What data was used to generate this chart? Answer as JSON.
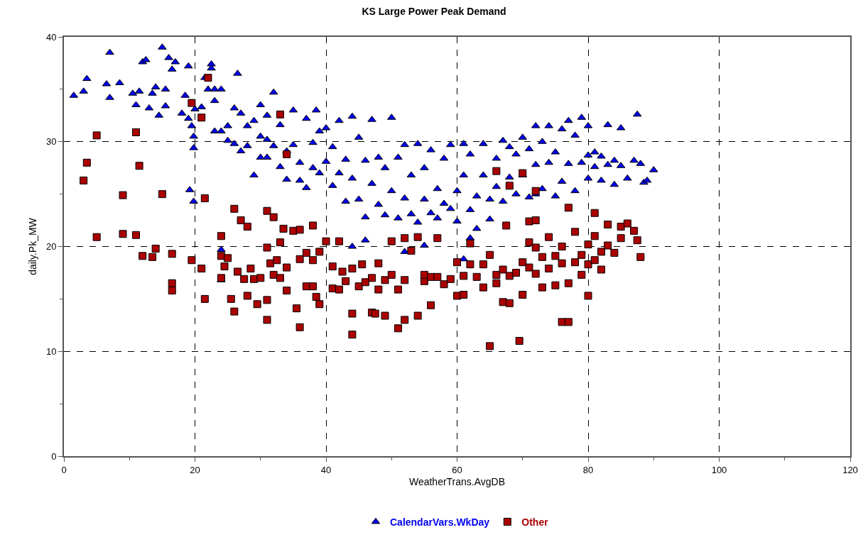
{
  "chart_data": {
    "type": "scatter",
    "title": "KS Large Power Peak Demand",
    "xlabel": "WeatherTrans.AvgDB",
    "ylabel": "daily.Pk_MW",
    "xlim": [
      0,
      120
    ],
    "xticks": [
      0,
      20,
      40,
      60,
      80,
      100,
      120
    ],
    "ylim": [
      0,
      40
    ],
    "yticks": [
      0,
      10,
      20,
      30,
      40
    ],
    "grid": true,
    "legend": "bottom",
    "series": [
      {
        "name": "CalendarVars.WkDay",
        "color": "#0000ee",
        "marker": "triangle",
        "x": [
          1.5,
          3,
          3.5,
          7,
          6.5,
          7,
          8.5,
          10.5,
          11.5,
          11,
          12,
          12.5,
          13,
          13.5,
          14,
          14.5,
          15,
          15.5,
          15.5,
          16,
          16.5,
          17,
          18,
          18.5,
          19,
          19,
          19.2,
          19.5,
          19.8,
          19.8,
          19.8,
          20,
          21,
          21.5,
          22,
          22.5,
          22.5,
          23,
          23,
          23,
          24,
          24,
          24,
          24,
          25,
          25,
          26,
          26,
          26.5,
          27,
          27,
          28,
          28,
          29,
          29,
          30,
          30,
          30,
          31,
          31,
          31,
          32,
          32,
          33,
          33,
          34,
          34,
          35,
          35,
          36,
          36,
          37,
          37,
          38,
          38,
          38.5,
          39,
          39,
          40,
          40,
          41,
          41,
          42,
          42,
          43,
          43,
          44,
          44,
          45,
          45,
          46,
          46,
          47,
          47,
          48,
          48,
          49,
          49,
          50,
          50,
          51,
          51,
          52,
          52,
          53,
          53,
          54,
          54,
          55,
          55,
          56,
          56,
          57,
          57,
          58,
          58,
          59,
          59,
          60,
          60,
          61,
          61,
          62,
          62,
          63,
          63,
          64,
          64,
          65,
          65,
          66,
          66,
          67,
          67,
          68,
          68,
          69,
          69,
          70,
          70,
          71,
          71,
          72,
          72,
          73,
          73,
          74,
          74,
          75,
          75,
          76,
          76,
          77,
          77,
          78,
          78,
          79,
          79,
          80,
          80,
          81,
          81,
          82,
          82,
          83,
          83,
          84,
          85,
          85,
          86,
          87,
          87.5,
          88,
          88.5,
          89,
          90,
          84,
          80,
          72,
          46,
          44,
          61,
          55,
          62,
          52
        ],
        "values": [
          34.4,
          34.8,
          36,
          38.5,
          35.5,
          34.2,
          35.6,
          34.6,
          34.8,
          33.5,
          37.6,
          37.8,
          33.2,
          34.6,
          35.2,
          32.5,
          39,
          33.4,
          35,
          38,
          36.9,
          37.6,
          32.7,
          34.4,
          37.2,
          32.2,
          25.4,
          31.5,
          24.3,
          30.5,
          29.4,
          33.1,
          33.3,
          36.1,
          35,
          37,
          37.4,
          31,
          33.9,
          35,
          35,
          31,
          19.7,
          16.8,
          31.5,
          30.1,
          33.2,
          29.8,
          36.5,
          32.7,
          29.1,
          31.5,
          29.6,
          32,
          26.8,
          33.5,
          30.5,
          28.5,
          32.5,
          30.2,
          28.5,
          34.7,
          29.6,
          27.6,
          31.6,
          26.4,
          29.1,
          33,
          29.7,
          28,
          26.3,
          32.2,
          25.6,
          29.9,
          27.5,
          33,
          31,
          27,
          31.3,
          28.1,
          25.8,
          29.5,
          32,
          27,
          24.3,
          28.3,
          32.4,
          26.5,
          30.4,
          24.5,
          28.2,
          22.8,
          32.1,
          26,
          24,
          28.5,
          23,
          27.5,
          32.3,
          25.3,
          22.7,
          28.5,
          29.7,
          24.6,
          23.1,
          26.8,
          29.8,
          22.3,
          24.5,
          27.5,
          29.2,
          23.2,
          25.5,
          22.7,
          28.4,
          24.1,
          29.7,
          23.6,
          25.3,
          22.4,
          29.8,
          26.8,
          28.8,
          23.5,
          24.8,
          21.7,
          29.8,
          26.8,
          24.5,
          22.6,
          28.4,
          25.7,
          30.1,
          24.3,
          29.5,
          26.6,
          25,
          28.8,
          30.4,
          26.8,
          29.3,
          24.7,
          31.5,
          27.8,
          25.5,
          30,
          31.5,
          28,
          24.8,
          29,
          31.2,
          26.2,
          32,
          27.9,
          30.6,
          25.3,
          32.3,
          28,
          31.5,
          26.5,
          29,
          27.6,
          28.6,
          26.3,
          31.6,
          27.8,
          28.2,
          31.3,
          27.7,
          26.5,
          28.2,
          32.6,
          27.9,
          26.1,
          26.3,
          27.3,
          25.9,
          28.7,
          25,
          20.6,
          20,
          18.8,
          20.1,
          20.8,
          19.5
        ]
      },
      {
        "name": "Other",
        "color": "#aa0000",
        "marker": "square",
        "x": [
          3,
          3.5,
          5,
          5,
          9,
          9,
          11,
          11,
          11.5,
          12,
          13.5,
          14,
          15,
          16.5,
          16.5,
          16.5,
          19.5,
          19.5,
          21,
          21,
          21.5,
          21.5,
          22,
          24,
          24,
          24,
          24.5,
          25,
          25.5,
          26,
          26,
          26.5,
          27,
          27.5,
          28,
          28,
          28.5,
          29,
          29.5,
          30,
          31,
          31,
          31,
          31,
          31.5,
          32,
          32,
          32.5,
          33,
          33,
          33,
          33.5,
          34,
          34,
          34,
          35,
          35.5,
          36,
          36,
          36,
          37,
          37,
          38,
          38,
          38.5,
          39,
          38,
          39,
          40,
          41,
          41,
          42,
          42,
          42.5,
          43,
          44,
          44,
          44,
          45,
          45.5,
          46,
          47,
          47,
          47.5,
          48,
          48,
          49,
          49,
          50,
          50,
          51,
          51,
          52,
          52,
          52,
          53,
          54,
          54,
          55,
          55,
          56,
          56,
          57,
          57,
          58,
          59,
          60,
          60,
          61,
          61,
          62,
          62,
          63,
          64,
          64,
          65,
          65,
          66,
          66,
          67,
          67,
          67.5,
          68,
          68,
          69,
          69.5,
          70,
          70,
          71,
          71,
          71,
          72,
          72,
          72,
          73,
          73,
          74,
          74,
          75,
          75,
          76,
          76,
          76,
          77,
          77,
          77,
          78,
          78,
          79,
          79,
          80,
          80,
          80,
          81,
          81,
          81,
          82,
          82,
          83,
          83,
          84,
          85,
          85,
          86,
          87,
          87.5,
          88,
          72,
          68,
          66,
          70
        ],
        "values": [
          26.3,
          28,
          30.6,
          20.9,
          24.9,
          21.2,
          30.9,
          21.1,
          27.7,
          19.1,
          19,
          19.8,
          25,
          19.3,
          16.5,
          15.8,
          33.7,
          18.7,
          32.3,
          17.9,
          24.6,
          15,
          36.1,
          17,
          19.1,
          21,
          18.1,
          18.9,
          15,
          13.8,
          23.6,
          17.6,
          22.5,
          16.9,
          21.9,
          15.3,
          17.9,
          16.9,
          14.5,
          17,
          23.4,
          19.9,
          14.9,
          13,
          18.4,
          22.8,
          17.3,
          18.7,
          32.6,
          20.4,
          17,
          21.7,
          18,
          15.8,
          28.8,
          21.5,
          14.1,
          12.3,
          21.6,
          18.8,
          16.2,
          19.4,
          22,
          16.2,
          15.2,
          14.5,
          18.7,
          19.5,
          20.5,
          18.1,
          16,
          20.5,
          15.9,
          17.6,
          16.7,
          13.6,
          11.6,
          17.9,
          16.2,
          18.3,
          16.6,
          13.7,
          17,
          13.6,
          15.9,
          18.4,
          13.4,
          16.8,
          20.5,
          17.3,
          12.2,
          15.9,
          20.8,
          13,
          16.8,
          19.6,
          20.9,
          13.4,
          16.7,
          17.3,
          17.1,
          14.4,
          20.8,
          17.1,
          16.4,
          16.9,
          18.5,
          15.3,
          17.2,
          15.4,
          18.3,
          20.3,
          17.1,
          16.1,
          18.3,
          10.5,
          19.2,
          16.5,
          17.3,
          14.7,
          17.8,
          22,
          14.6,
          17.2,
          17.5,
          11,
          18.5,
          15.4,
          20.4,
          18,
          22.4,
          17.4,
          19.9,
          22.5,
          16.1,
          19,
          17.9,
          20.9,
          16.3,
          19.1,
          12.8,
          18.4,
          20,
          23.7,
          16.5,
          12.8,
          18.5,
          21.4,
          19.2,
          17.3,
          20.2,
          15.3,
          18.3,
          23.2,
          21,
          18.7,
          19.5,
          17.8,
          22.1,
          20.1,
          19.4,
          21.9,
          20.8,
          22.2,
          21.5,
          20.6,
          19,
          25.3,
          25.8,
          27.2,
          27
        ]
      }
    ]
  }
}
